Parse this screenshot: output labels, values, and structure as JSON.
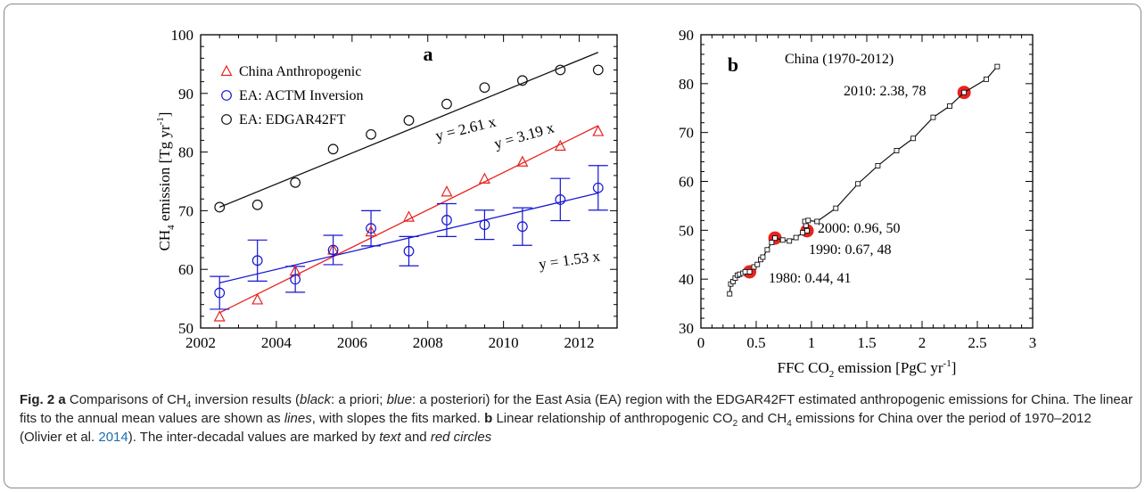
{
  "chart_data": [
    {
      "type": "scatter",
      "panel_label": "a",
      "ylabel": "CH4 emission [Tg yr-1]",
      "xlim": [
        2002,
        2013
      ],
      "ylim": [
        50,
        100
      ],
      "xticks": [
        2002,
        2004,
        2006,
        2008,
        2010,
        2012
      ],
      "yticks": [
        50,
        60,
        70,
        80,
        90,
        100
      ],
      "legend_position": "top-left",
      "series": [
        {
          "name": "China Anthropogenic",
          "marker": "triangle",
          "color": "#e8231f",
          "x": [
            2002.5,
            2003.5,
            2004.5,
            2005.5,
            2006.5,
            2007.5,
            2008.5,
            2009.5,
            2010.5,
            2011.5,
            2012.5
          ],
          "y": [
            51.9,
            54.8,
            59.7,
            63.3,
            66.4,
            68.9,
            73.2,
            75.4,
            78.3,
            81.0,
            83.5
          ]
        },
        {
          "name": "EA: ACTM Inversion",
          "marker": "circle",
          "color": "#1515d4",
          "x": [
            2002.5,
            2003.5,
            2004.5,
            2005.5,
            2006.5,
            2007.5,
            2008.5,
            2009.5,
            2010.5,
            2011.5,
            2012.5
          ],
          "y": [
            56.0,
            61.5,
            58.3,
            63.3,
            67.0,
            63.1,
            68.4,
            67.6,
            67.3,
            71.9,
            73.9
          ],
          "error": [
            2.8,
            3.5,
            2.2,
            2.5,
            3.0,
            2.5,
            2.8,
            2.5,
            3.2,
            3.6,
            3.8
          ]
        },
        {
          "name": "EA: EDGAR42FT",
          "marker": "circle",
          "color": "#111111",
          "x": [
            2002.5,
            2003.5,
            2004.5,
            2005.5,
            2006.5,
            2007.5,
            2008.5,
            2009.5,
            2010.5,
            2011.5,
            2012.5
          ],
          "y": [
            70.6,
            71.0,
            74.8,
            80.5,
            83.0,
            85.4,
            88.2,
            91.0,
            92.2,
            94.0,
            94.0
          ]
        }
      ],
      "fits": [
        {
          "label": "y = 2.61 x",
          "color": "#111111",
          "x": [
            2002.5,
            2012.5
          ],
          "y": [
            70.6,
            97.0
          ]
        },
        {
          "label": "y = 3.19 x",
          "color": "#e8231f",
          "x": [
            2002.5,
            2012.5
          ],
          "y": [
            52.6,
            84.5
          ]
        },
        {
          "label": "y = 1.53 x",
          "color": "#1515d4",
          "x": [
            2002.5,
            2012.5
          ],
          "y": [
            57.7,
            73.0
          ]
        }
      ]
    },
    {
      "type": "line",
      "panel_label": "b",
      "title": "China (1970-2012)",
      "xlabel": "FFC CO2 emission [PgC yr-1]",
      "xlim": [
        0,
        3
      ],
      "ylim": [
        30,
        90
      ],
      "xticks": [
        0,
        0.5,
        1,
        1.5,
        2,
        2.5,
        3
      ],
      "xtick_labels": [
        "0",
        "0.5",
        "1",
        "1.5",
        "2",
        "2.5",
        "3"
      ],
      "yticks": [
        30,
        40,
        50,
        60,
        70,
        80,
        90
      ],
      "color": "#111111",
      "x": [
        0.26,
        0.27,
        0.29,
        0.31,
        0.33,
        0.35,
        0.38,
        0.4,
        0.44,
        0.48,
        0.51,
        0.54,
        0.56,
        0.6,
        0.64,
        0.67,
        0.74,
        0.8,
        0.86,
        0.92,
        0.96,
        0.95,
        0.94,
        0.97,
        1.05,
        1.22,
        1.42,
        1.6,
        1.77,
        1.92,
        2.1,
        2.25,
        2.38,
        2.58,
        2.68
      ],
      "y": [
        37.0,
        39.0,
        39.5,
        40.2,
        40.8,
        41.0,
        41.2,
        41.5,
        41.5,
        42.5,
        43.0,
        44.0,
        44.5,
        46.0,
        47.5,
        48.4,
        48.0,
        47.8,
        48.5,
        49.5,
        49.9,
        51.0,
        51.8,
        52.0,
        51.8,
        54.5,
        59.5,
        63.2,
        66.3,
        68.8,
        73.1,
        75.4,
        78.2,
        80.9,
        83.5
      ],
      "highlights": [
        {
          "label": "1980: 0.44, 41",
          "x": 0.44,
          "y": 41.5,
          "color": "#e8231f"
        },
        {
          "label": "1990: 0.67, 48",
          "x": 0.67,
          "y": 48.4,
          "color": "#e8231f"
        },
        {
          "label": "2000: 0.96, 50",
          "x": 0.96,
          "y": 49.9,
          "color": "#e8231f"
        },
        {
          "label": "2010: 2.38, 78",
          "x": 2.38,
          "y": 78.2,
          "color": "#e8231f"
        }
      ]
    }
  ],
  "caption": {
    "fig_label": "Fig. 2",
    "a_label": "a",
    "a1": " Comparisons of CH",
    "a1_sub": "4",
    "a2": " inversion results (",
    "black_word": "black",
    "a3": ": a priori; ",
    "blue_word": "blue",
    "a4": ": a posteriori) for the East Asia (EA) region with the EDGAR42FT estimated anthropogenic emissions for China. The linear fits to the annual mean values are shown as ",
    "lines_word": "lines",
    "a5": ", with slopes the fits marked. ",
    "b_label": "b",
    "b1": " Linear relationship of anthropogenic CO",
    "b1_sub": "2",
    "b2": " and CH",
    "b2_sub": "4",
    "b3": " emissions for China over the period of 1970–2012 (Olivier et al. ",
    "ref_year": "2014",
    "b4": "). The inter-decadal values are marked by ",
    "text_word": "text",
    "b5": " and ",
    "red_circles_word": "red circles"
  }
}
